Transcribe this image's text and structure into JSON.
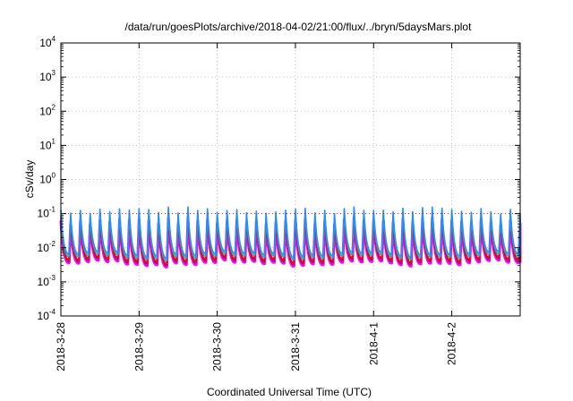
{
  "chart_data": {
    "type": "line",
    "title": "/data/run/goesPlots/archive/2018-04-02/21:00/flux/../bryn/5daysMars.plot",
    "xlabel": "Coordinated Universal Time (UTC)",
    "ylabel": "cSv/day",
    "yscale": "log",
    "ylim": [
      0.0001,
      10000
    ],
    "xlim": [
      "2018-03-28",
      "2018-04-02T21:00"
    ],
    "x_ticks": [
      "2018-3-28",
      "2018-3-29",
      "2018-3-30",
      "2018-3-31",
      "2018-4-1",
      "2018-4-2"
    ],
    "y_ticks": [
      {
        "base": "10",
        "exp": "-4",
        "value": 0.0001
      },
      {
        "base": "10",
        "exp": "-3",
        "value": 0.001
      },
      {
        "base": "10",
        "exp": "-2",
        "value": 0.01
      },
      {
        "base": "10",
        "exp": "-1",
        "value": 0.1
      },
      {
        "base": "10",
        "exp": "0",
        "value": 1
      },
      {
        "base": "10",
        "exp": "1",
        "value": 10
      },
      {
        "base": "10",
        "exp": "2",
        "value": 100
      },
      {
        "base": "10",
        "exp": "3",
        "value": 1000
      },
      {
        "base": "10",
        "exp": "4",
        "value": 10000
      }
    ],
    "grid": true,
    "reference_line": {
      "value": 0.1,
      "color": "#ff0000",
      "style": "dotted"
    },
    "sawtooth": {
      "cycles_per_day": 8,
      "peak_max": 0.15,
      "peak_min": 0.06,
      "trough_max": 0.008,
      "trough_min": 0.0035
    },
    "series": [
      {
        "color": "#ff00ff",
        "scale": 0.55
      },
      {
        "color": "#8b2252",
        "scale": 0.62
      },
      {
        "color": "#ff0000",
        "scale": 0.7
      },
      {
        "color": "#20b2aa",
        "scale": 0.85
      },
      {
        "color": "#1e90ff",
        "scale": 1.0
      }
    ]
  }
}
